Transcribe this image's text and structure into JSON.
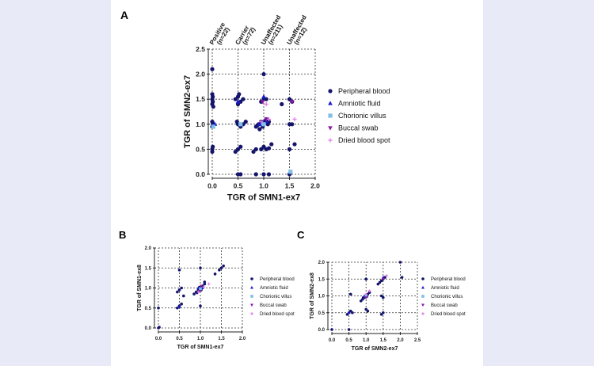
{
  "colors": {
    "peripheral": "#14146b",
    "amniotic": "#1a1ad0",
    "chorionic": "#7fbfe8",
    "buccal": "#8a1aa8",
    "dried": "#e07be8"
  },
  "chart_data": [
    {
      "panel_label": "A",
      "type": "scatter",
      "xlabel": "TGR of SMN1-ex7",
      "ylabel": "TGR of SMN2-ex7",
      "xlim": [
        0,
        2.0
      ],
      "ylim": [
        0,
        2.5
      ],
      "xticks": [
        "0.0",
        "0.5",
        "1.0",
        "1.5",
        "2.0"
      ],
      "yticks": [
        "0.0",
        "0.5",
        "1.0",
        "1.5",
        "2.0",
        "2.5"
      ],
      "grid": true,
      "legend_position": "right",
      "groups": [
        {
          "label": "Positive (n=22)",
          "x": 0.0
        },
        {
          "label": "Carrier (n=72)",
          "x": 0.5
        },
        {
          "label": "Unaffected (n=211)",
          "x": 1.0
        },
        {
          "label": "Unaffected (n=12)",
          "x": 1.5
        }
      ],
      "series": [
        {
          "name": "Peripheral blood",
          "marker": "circle",
          "color_key": "peripheral",
          "points": [
            [
              0,
              2.1
            ],
            [
              0,
              1.6
            ],
            [
              0.01,
              1.55
            ],
            [
              0,
              1.5
            ],
            [
              0.01,
              1.45
            ],
            [
              0,
              1.4
            ],
            [
              0.02,
              1.35
            ],
            [
              0,
              1.05
            ],
            [
              0.01,
              1.0
            ],
            [
              0,
              0.95
            ],
            [
              0.02,
              1.0
            ],
            [
              0,
              0.5
            ],
            [
              0.01,
              0.55
            ],
            [
              0,
              0.45
            ],
            [
              0.45,
              1.5
            ],
            [
              0.5,
              1.55
            ],
            [
              0.55,
              1.45
            ],
            [
              0.6,
              1.5
            ],
            [
              0.5,
              1.4
            ],
            [
              0.52,
              1.6
            ],
            [
              0.48,
              1.05
            ],
            [
              0.5,
              1.0
            ],
            [
              0.55,
              0.95
            ],
            [
              0.6,
              1.0
            ],
            [
              0.65,
              1.05
            ],
            [
              0.5,
              0.5
            ],
            [
              0.55,
              0.55
            ],
            [
              0.45,
              0.45
            ],
            [
              0.5,
              0.0
            ],
            [
              0.55,
              0.0
            ],
            [
              0.85,
              0.95
            ],
            [
              0.9,
              1.0
            ],
            [
              0.95,
              1.05
            ],
            [
              1.0,
              1.0
            ],
            [
              1.05,
              1.1
            ],
            [
              0.92,
              0.9
            ],
            [
              0.98,
              0.95
            ],
            [
              1.02,
              1.05
            ],
            [
              0.88,
              0.98
            ],
            [
              1.08,
              1.0
            ],
            [
              1.1,
              1.05
            ],
            [
              1.0,
              2.0
            ],
            [
              1.0,
              1.5
            ],
            [
              0.95,
              1.45
            ],
            [
              1.05,
              1.5
            ],
            [
              0.85,
              0.5
            ],
            [
              0.95,
              0.5
            ],
            [
              1.0,
              0.55
            ],
            [
              1.05,
              0.5
            ],
            [
              1.1,
              0.52
            ],
            [
              0.8,
              0.45
            ],
            [
              1.15,
              0.6
            ],
            [
              0.85,
              0.0
            ],
            [
              1.0,
              0.0
            ],
            [
              1.1,
              0.0
            ],
            [
              1.35,
              1.4
            ],
            [
              1.5,
              1.5
            ],
            [
              1.55,
              1.45
            ],
            [
              1.5,
              1.0
            ],
            [
              1.55,
              1.0
            ],
            [
              1.5,
              0.5
            ],
            [
              1.6,
              0.6
            ],
            [
              1.5,
              0.0
            ]
          ]
        },
        {
          "name": "Amniotic fluid",
          "marker": "triangle",
          "color_key": "amniotic",
          "points": [
            [
              0.05,
              1.0
            ],
            [
              0.5,
              1.45
            ],
            [
              0.92,
              1.0
            ],
            [
              1.0,
              1.55
            ],
            [
              1.05,
              1.05
            ]
          ]
        },
        {
          "name": "Chorionic villus",
          "marker": "square",
          "color_key": "chorionic",
          "points": [
            [
              0.02,
              0.95
            ],
            [
              0.55,
              1.0
            ],
            [
              1.0,
              1.0
            ],
            [
              1.52,
              0.05
            ]
          ]
        },
        {
          "name": "Buccal swab",
          "marker": "triangle-down",
          "color_key": "buccal",
          "points": [
            [
              1.05,
              1.1
            ],
            [
              0.98,
              1.45
            ],
            [
              1.55,
              1.45
            ]
          ]
        },
        {
          "name": "Dried blood spot",
          "marker": "plus",
          "color_key": "dried",
          "points": [
            [
              1.1,
              1.1
            ],
            [
              0.95,
              1.05
            ],
            [
              1.6,
              1.1
            ],
            [
              1.05,
              1.4
            ]
          ]
        }
      ]
    },
    {
      "panel_label": "B",
      "type": "scatter",
      "xlabel": "TGR of SMN1-ex7",
      "ylabel": "TGR of SMN1-ex8",
      "xlim": [
        0,
        2.0
      ],
      "ylim": [
        0,
        2.0
      ],
      "xticks": [
        "0.0",
        "0.5",
        "1.0",
        "1.5",
        "2.0"
      ],
      "yticks": [
        "0.0",
        "0.5",
        "1.0",
        "1.5",
        "2.0"
      ],
      "grid": true,
      "legend_position": "right",
      "series": [
        {
          "name": "Peripheral blood",
          "marker": "circle",
          "color_key": "peripheral",
          "points": [
            [
              0,
              0.0
            ],
            [
              0.02,
              0.02
            ],
            [
              0,
              0.5
            ],
            [
              0.45,
              0.5
            ],
            [
              0.5,
              0.55
            ],
            [
              0.55,
              0.6
            ],
            [
              0.5,
              1.45
            ],
            [
              0.5,
              0.95
            ],
            [
              0.55,
              1.0
            ],
            [
              0.45,
              0.9
            ],
            [
              0.6,
              0.8
            ],
            [
              0.85,
              0.85
            ],
            [
              0.9,
              0.9
            ],
            [
              0.95,
              0.95
            ],
            [
              1.0,
              1.0
            ],
            [
              1.05,
              1.05
            ],
            [
              1.1,
              1.1
            ],
            [
              0.92,
              0.88
            ],
            [
              0.98,
              1.02
            ],
            [
              1.02,
              0.95
            ],
            [
              1.1,
              1.15
            ],
            [
              1.0,
              1.5
            ],
            [
              1.0,
              0.55
            ],
            [
              1.35,
              1.35
            ],
            [
              1.45,
              1.45
            ],
            [
              1.5,
              1.5
            ],
            [
              1.55,
              1.55
            ]
          ]
        },
        {
          "name": "Amniotic fluid",
          "marker": "triangle",
          "color_key": "amniotic",
          "points": [
            [
              0.95,
              1.0
            ],
            [
              1.05,
              1.0
            ],
            [
              0.5,
              0.52
            ]
          ]
        },
        {
          "name": "Chorionic villus",
          "marker": "square",
          "color_key": "chorionic",
          "points": [
            [
              1.0,
              0.98
            ]
          ]
        },
        {
          "name": "Buccal swab",
          "marker": "triangle-down",
          "color_key": "buccal",
          "points": [
            [
              0.98,
              0.92
            ],
            [
              1.02,
              1.05
            ]
          ]
        },
        {
          "name": "Dried blood spot",
          "marker": "plus",
          "color_key": "dried",
          "points": [
            [
              0.95,
              0.9
            ],
            [
              1.08,
              1.02
            ],
            [
              1.2,
              1.1
            ]
          ]
        }
      ]
    },
    {
      "panel_label": "C",
      "type": "scatter",
      "xlabel": "TGR of SMN2-ex7",
      "ylabel": "TGR of SMN2-ex8",
      "xlim": [
        0,
        2.5
      ],
      "ylim": [
        0,
        2.0
      ],
      "xticks": [
        "0.0",
        "0.5",
        "1.0",
        "1.5",
        "2.0",
        "2.5"
      ],
      "yticks": [
        "0.0",
        "0.5",
        "1.0",
        "1.5",
        "2.0"
      ],
      "grid": true,
      "legend_position": "right",
      "series": [
        {
          "name": "Peripheral blood",
          "marker": "circle",
          "color_key": "peripheral",
          "points": [
            [
              0,
              0.0
            ],
            [
              0.5,
              0.0
            ],
            [
              0.45,
              0.45
            ],
            [
              0.5,
              0.5
            ],
            [
              0.55,
              0.55
            ],
            [
              0.6,
              0.5
            ],
            [
              0.55,
              1.05
            ],
            [
              0.85,
              0.85
            ],
            [
              0.9,
              0.9
            ],
            [
              0.95,
              0.95
            ],
            [
              1.0,
              1.0
            ],
            [
              1.05,
              1.05
            ],
            [
              1.1,
              1.1
            ],
            [
              0.92,
              0.95
            ],
            [
              1.02,
              0.98
            ],
            [
              1.0,
              1.5
            ],
            [
              1.0,
              0.6
            ],
            [
              1.05,
              0.55
            ],
            [
              1.35,
              1.35
            ],
            [
              1.4,
              1.4
            ],
            [
              1.45,
              1.45
            ],
            [
              1.5,
              1.5
            ],
            [
              1.55,
              1.55
            ],
            [
              1.45,
              1.0
            ],
            [
              1.5,
              0.95
            ],
            [
              1.5,
              0.5
            ],
            [
              1.45,
              0.45
            ],
            [
              2.0,
              2.0
            ],
            [
              2.05,
              1.55
            ]
          ]
        },
        {
          "name": "Amniotic fluid",
          "marker": "triangle",
          "color_key": "amniotic",
          "points": [
            [
              0.95,
              1.0
            ],
            [
              1.5,
              1.55
            ],
            [
              0.5,
              0.5
            ]
          ]
        },
        {
          "name": "Chorionic villus",
          "marker": "square",
          "color_key": "chorionic",
          "points": [
            [
              1.0,
              1.0
            ]
          ]
        },
        {
          "name": "Buccal swab",
          "marker": "triangle-down",
          "color_key": "buccal",
          "points": [
            [
              1.0,
              0.95
            ],
            [
              1.5,
              1.5
            ]
          ]
        },
        {
          "name": "Dried blood spot",
          "marker": "plus",
          "color_key": "dried",
          "points": [
            [
              1.1,
              1.15
            ],
            [
              1.6,
              1.6
            ],
            [
              1.0,
              1.05
            ]
          ]
        }
      ]
    }
  ]
}
